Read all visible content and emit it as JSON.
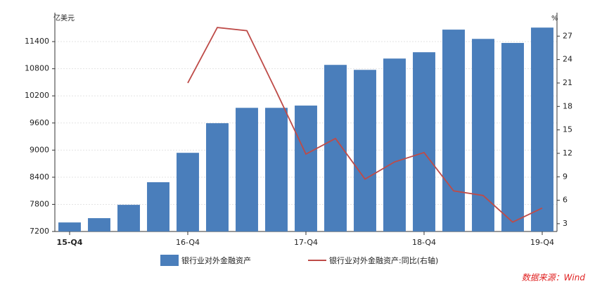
{
  "chart_data": {
    "type": "bar-line",
    "y_label": "亿美元",
    "y2_label": "%",
    "categories": [
      "15-Q4",
      null,
      null,
      null,
      "16-Q4",
      null,
      null,
      null,
      "17-Q4",
      null,
      null,
      null,
      "18-Q4",
      null,
      null,
      null,
      "19-Q4"
    ],
    "series": [
      {
        "name": "银行业对外金融资产",
        "type": "bar",
        "color": "#4a7ebb",
        "values": [
          7400,
          7495,
          7790,
          8290,
          8940,
          9595,
          9935,
          9935,
          9985,
          10885,
          10775,
          11025,
          11165,
          11665,
          11460,
          11370,
          11710
        ]
      },
      {
        "name": "银行业对外金融资产:同比(右轴)",
        "type": "line",
        "axis": "y2",
        "color": "#be4b48",
        "values": [
          null,
          null,
          null,
          null,
          21.0,
          28.1,
          27.7,
          19.9,
          11.9,
          13.9,
          8.7,
          10.9,
          12.1,
          7.2,
          6.6,
          3.2,
          5.0
        ]
      }
    ],
    "ylim": [
      7200,
      12040
    ],
    "yticks": [
      7200,
      7800,
      8400,
      9000,
      9600,
      10200,
      10800,
      11400
    ],
    "y2lim": [
      2,
      30
    ],
    "y2ticks": [
      3,
      6,
      9,
      12,
      15,
      18,
      21,
      24,
      27
    ],
    "grid": true,
    "source": "数据来源：Wind"
  }
}
